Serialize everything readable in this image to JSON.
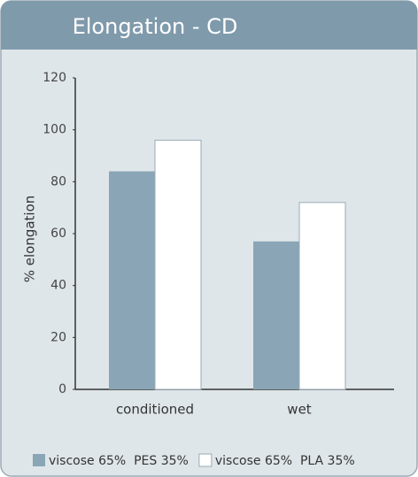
{
  "chart_data": {
    "type": "bar",
    "title": "Elongation - CD",
    "y_label": "% elongation",
    "categories": [
      "conditioned",
      "wet"
    ],
    "series": [
      {
        "name": "viscose 65%  PES 35%",
        "color": "#8aa5b5",
        "values": [
          84,
          57
        ]
      },
      {
        "name": "viscose 65%  PLA 35%",
        "color": "#ffffff",
        "values": [
          96,
          72
        ]
      }
    ],
    "ylim": [
      0,
      120
    ],
    "yticks": [
      0,
      20,
      40,
      60,
      80,
      100,
      120
    ],
    "grid": false,
    "legend": "bottom"
  }
}
